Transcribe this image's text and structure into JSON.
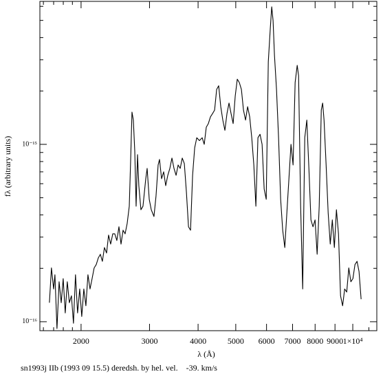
{
  "chart_data": {
    "type": "line",
    "xlabel": "λ (Å)",
    "ylabel": "fλ (arbitrary units)",
    "footer": "sn1993j IIb (1993 09 15.5) deredsh. by hel. vel.    -39. km/s",
    "xscale": "log",
    "yscale": "log",
    "color": "#000000",
    "xlim": [
      1567,
      11530
    ],
    "ylim": [
      8.9e-17,
      6.4e-15
    ],
    "xticks": [
      2000,
      3000,
      4000,
      5000,
      6000,
      7000,
      8000,
      9000,
      {
        "value": 10000,
        "label": "1×10⁴"
      }
    ],
    "xminorticks": [
      1600,
      1700,
      1800,
      1900,
      11000
    ],
    "yticks": [
      {
        "value": 1e-16,
        "label": "10⁻¹⁶"
      },
      {
        "value": 1e-15,
        "label": "10⁻¹⁵"
      }
    ],
    "yminorticks": [
      2e-16,
      3e-16,
      4e-16,
      5e-16,
      6e-16,
      7e-16,
      8e-16,
      9e-16,
      2e-15,
      3e-15,
      4e-15,
      5e-15,
      6e-15
    ],
    "x": [
      1658,
      1678,
      1700,
      1713,
      1734,
      1756,
      1778,
      1799,
      1821,
      1843,
      1866,
      1889,
      1912,
      1935,
      1959,
      1984,
      2008,
      2033,
      2058,
      2083,
      2109,
      2135,
      2161,
      2188,
      2215,
      2242,
      2269,
      2297,
      2326,
      2354,
      2383,
      2413,
      2442,
      2472,
      2503,
      2534,
      2565,
      2596,
      2628,
      2661,
      2682,
      2704,
      2726,
      2749,
      2771,
      2794,
      2816,
      2851,
      2886,
      2934,
      2958,
      2995,
      3031,
      3080,
      3118,
      3157,
      3183,
      3222,
      3262,
      3302,
      3343,
      3384,
      3426,
      3468,
      3511,
      3554,
      3598,
      3642,
      3687,
      3733,
      3779,
      3825,
      3872,
      3920,
      3969,
      4032,
      4098,
      4148,
      4199,
      4251,
      4304,
      4357,
      4411,
      4465,
      4519,
      4575,
      4631,
      4688,
      4746,
      4804,
      4863,
      4923,
      4984,
      5045,
      5107,
      5170,
      5234,
      5298,
      5364,
      5430,
      5497,
      5565,
      5633,
      5702,
      5773,
      5844,
      5916,
      5989,
      6063,
      6137,
      6187,
      6237,
      6288,
      6365,
      6443,
      6523,
      6603,
      6685,
      6767,
      6851,
      6935,
      7021,
      7107,
      7195,
      7254,
      7343,
      7433,
      7525,
      7617,
      7711,
      7805,
      7901,
      7998,
      8097,
      8197,
      8298,
      8366,
      8435,
      8539,
      8644,
      8751,
      8859,
      8967,
      9077,
      9189,
      9301,
      9416,
      9531,
      9648,
      9767,
      9887,
      10008,
      10131,
      10256,
      10377,
      10506
    ],
    "values": [
      1.28e-16,
      2.01e-16,
      1.53e-16,
      1.84e-16,
      9.15e-17,
      1.68e-16,
      1.28e-16,
      1.75e-16,
      1.12e-16,
      1.68e-16,
      1.28e-16,
      1.4e-16,
      9.8e-17,
      1.84e-16,
      1.12e-16,
      1.53e-16,
      1.07e-16,
      1.53e-16,
      1.23e-16,
      1.84e-16,
      1.53e-16,
      1.75e-16,
      2.01e-16,
      2.1e-16,
      2.29e-16,
      2.4e-16,
      2.19e-16,
      2.62e-16,
      2.44e-16,
      3.08e-16,
      2.74e-16,
      3.13e-16,
      3.13e-16,
      2.87e-16,
      3.43e-16,
      2.74e-16,
      3.28e-16,
      3.13e-16,
      3.58e-16,
      4.48e-16,
      8e-16,
      1.52e-15,
      1.37e-15,
      9.15e-16,
      4.48e-16,
      8.75e-16,
      5.85e-16,
      4.28e-16,
      4.48e-16,
      6.4e-16,
      7.32e-16,
      4.9e-16,
      4.28e-16,
      3.92e-16,
      5.12e-16,
      7.65e-16,
      8.22e-16,
      6.4e-16,
      7e-16,
      5.85e-16,
      6.69e-16,
      7.32e-16,
      8.37e-16,
      7.32e-16,
      6.69e-16,
      7.65e-16,
      7.32e-16,
      8.37e-16,
      7.79e-16,
      5.36e-16,
      3.43e-16,
      3.28e-16,
      6.69e-16,
      9.56e-16,
      1.09e-15,
      1.05e-15,
      1.09e-15,
      1e-15,
      1.25e-15,
      1.31e-15,
      1.43e-15,
      1.49e-15,
      1.56e-15,
      2.04e-15,
      2.14e-15,
      1.63e-15,
      1.37e-15,
      1.2e-15,
      1.49e-15,
      1.71e-15,
      1.49e-15,
      1.31e-15,
      1.87e-15,
      2.33e-15,
      2.23e-15,
      2.04e-15,
      1.56e-15,
      1.37e-15,
      1.63e-15,
      1.43e-15,
      1.09e-15,
      7.65e-16,
      4.48e-16,
      1.09e-15,
      1.14e-15,
      1e-15,
      5.6e-16,
      4.9e-16,
      2.92e-15,
      4.56e-15,
      5.96e-15,
      4.98e-15,
      3.19e-15,
      2.04e-15,
      1.09e-15,
      4.9e-16,
      3.28e-16,
      2.62e-16,
      4.1e-16,
      6.4e-16,
      1e-15,
      7.65e-16,
      2.23e-15,
      2.79e-15,
      2.44e-15,
      4.48e-16,
      1.53e-16,
      1.09e-15,
      1.37e-15,
      7.32e-16,
      3.75e-16,
      3.43e-16,
      3.75e-16,
      2.4e-16,
      4.48e-16,
      1.56e-15,
      1.71e-15,
      1.37e-15,
      7.65e-16,
      4.1e-16,
      2.74e-16,
      3.75e-16,
      2.62e-16,
      4.28e-16,
      3.13e-16,
      1.4e-16,
      1.23e-16,
      1.53e-16,
      1.47e-16,
      2.01e-16,
      1.68e-16,
      1.75e-16,
      2.1e-16,
      2.19e-16,
      1.92e-16,
      1.34e-16
    ]
  }
}
